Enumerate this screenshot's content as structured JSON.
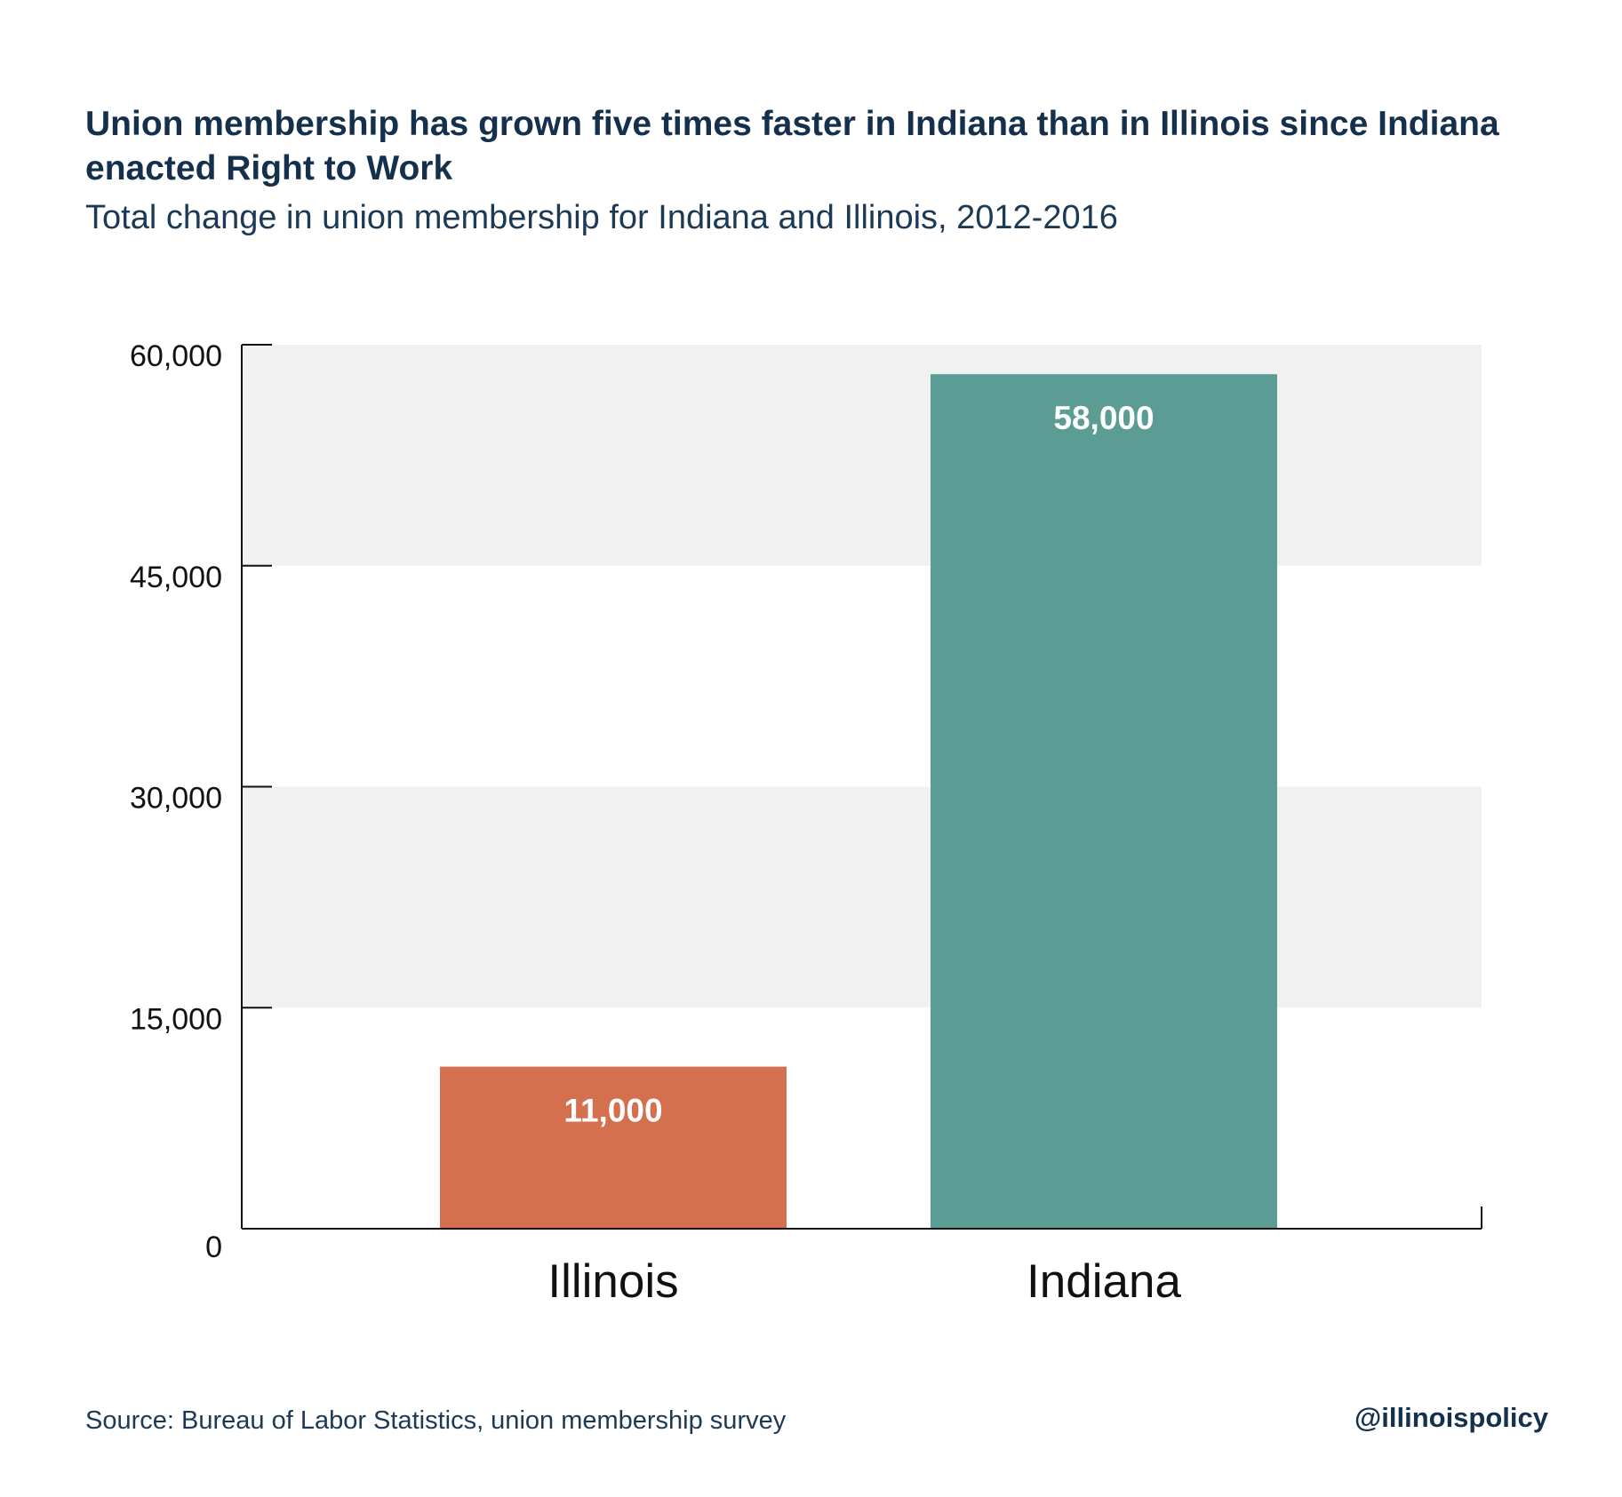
{
  "title": "Union membership has grown five times faster in Indiana than in Illinois since Indiana enacted Right to Work",
  "subtitle": "Total change in union membership for Indiana and Illinois, 2012-2016",
  "source": "Source: Bureau of Labor Statistics, union membership survey",
  "handle": "@illinoispolicy",
  "chart_data": {
    "type": "bar",
    "categories": [
      "Illinois",
      "Indiana"
    ],
    "values": [
      11000,
      58000
    ],
    "data_labels": [
      "11,000",
      "58,000"
    ],
    "colors": [
      "#d4704e",
      "#5b9d94"
    ],
    "ylim": [
      0,
      60000
    ],
    "yticks": [
      0,
      15000,
      30000,
      45000,
      60000
    ],
    "ytick_labels": [
      "0",
      "15,000",
      "30,000",
      "45,000",
      "60,000"
    ],
    "band_color": "#f1f1f1",
    "grid": false,
    "xlabel": "",
    "ylabel": ""
  }
}
